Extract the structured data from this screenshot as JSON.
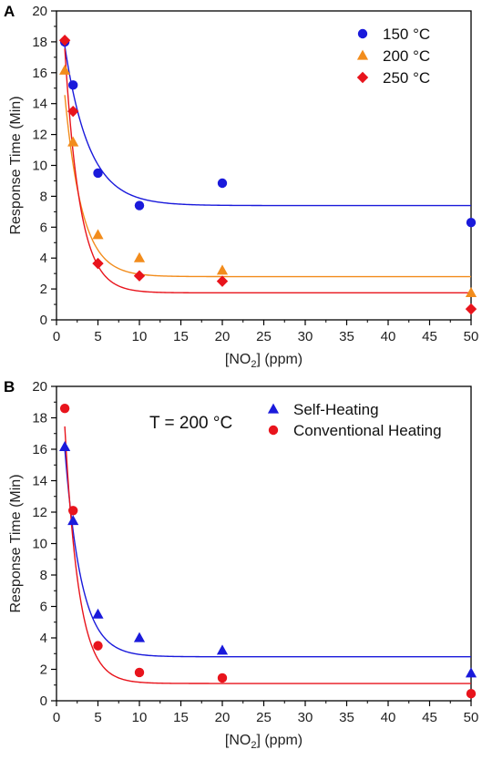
{
  "chart_data": [
    {
      "type": "scatter",
      "panel_label": "A",
      "xlabel_main": "[NO",
      "xlabel_sub": "2",
      "xlabel_tail": "] (ppm)",
      "ylabel": "Response Time (Min)",
      "xlim": [
        0,
        50
      ],
      "ylim": [
        0,
        20
      ],
      "xticks": [
        0,
        5,
        10,
        15,
        20,
        25,
        30,
        35,
        40,
        45,
        50
      ],
      "yticks": [
        0,
        2,
        4,
        6,
        8,
        10,
        12,
        14,
        16,
        18,
        20
      ],
      "legend_position": "top-right",
      "annotation": "",
      "series": [
        {
          "name": "150 °C",
          "marker": "circle",
          "color": "#1a1adb",
          "x": [
            1,
            2,
            5,
            10,
            20,
            50
          ],
          "y": [
            18.0,
            15.2,
            9.5,
            7.4,
            8.85,
            6.3
          ],
          "fit": {
            "plateau": 7.4,
            "amplitude": 14.5,
            "rate": 0.34
          }
        },
        {
          "name": "200 °C",
          "marker": "triangle",
          "color": "#f28c1c",
          "x": [
            1,
            2,
            5,
            10,
            20,
            50
          ],
          "y": [
            16.15,
            11.5,
            5.5,
            4.0,
            3.2,
            1.75
          ],
          "fit": {
            "plateau": 2.8,
            "amplitude": 19.0,
            "rate": 0.48
          }
        },
        {
          "name": "250 °C",
          "marker": "diamond",
          "color": "#e8141c",
          "x": [
            1,
            2,
            5,
            10,
            20,
            50
          ],
          "y": [
            18.1,
            13.5,
            3.65,
            2.85,
            2.5,
            0.7
          ],
          "fit": {
            "plateau": 1.75,
            "amplitude": 27.4,
            "rate": 0.55
          }
        }
      ]
    },
    {
      "type": "scatter",
      "panel_label": "B",
      "xlabel_main": "[NO",
      "xlabel_sub": "2",
      "xlabel_tail": "] (ppm)",
      "ylabel": "Response Time (Min)",
      "xlim": [
        0,
        50
      ],
      "ylim": [
        0,
        20
      ],
      "xticks": [
        0,
        5,
        10,
        15,
        20,
        25,
        30,
        35,
        40,
        45,
        50
      ],
      "yticks": [
        0,
        2,
        4,
        6,
        8,
        10,
        12,
        14,
        16,
        18,
        20
      ],
      "legend_position": "top-right",
      "annotation": "T = 200 °C",
      "series": [
        {
          "name": "Self-Heating",
          "marker": "triangle",
          "color": "#1a1adb",
          "x": [
            1,
            2,
            5,
            10,
            20,
            50
          ],
          "y": [
            16.15,
            11.45,
            5.5,
            4.0,
            3.2,
            1.75
          ],
          "fit": {
            "plateau": 2.8,
            "amplitude": 21.8,
            "rate": 0.5
          }
        },
        {
          "name": "Conventional Heating",
          "marker": "circle",
          "color": "#e8141c",
          "x": [
            1,
            2,
            5,
            10,
            20,
            50
          ],
          "y": [
            18.6,
            12.1,
            3.5,
            1.8,
            1.45,
            0.45
          ],
          "fit": {
            "plateau": 1.1,
            "amplitude": 29.5,
            "rate": 0.59
          }
        }
      ]
    }
  ]
}
